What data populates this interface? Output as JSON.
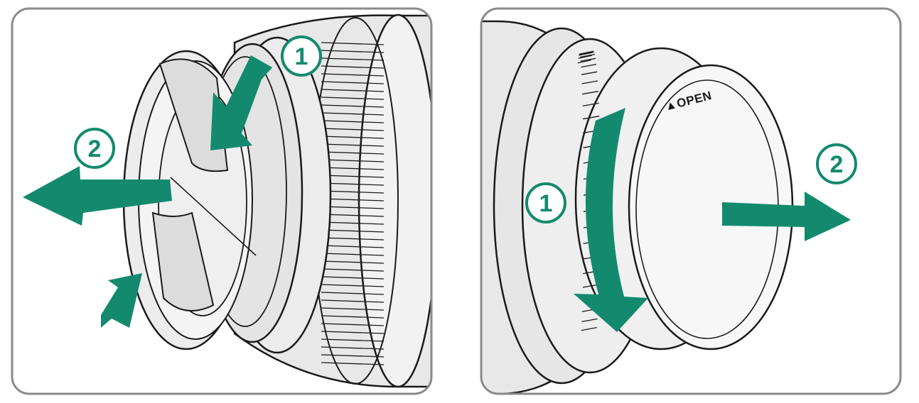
{
  "colors": {
    "accent": "#138a6e",
    "frame": "#8a8a8a",
    "lens_fill": "#e8e8e8",
    "lens_line": "#1a1a1a",
    "badge_fill": "#ffffff"
  },
  "left_panel": {
    "step_1": "1",
    "step_2": "2"
  },
  "right_panel": {
    "step_1": "1",
    "step_2": "2",
    "cap_label": "▲OPEN"
  }
}
